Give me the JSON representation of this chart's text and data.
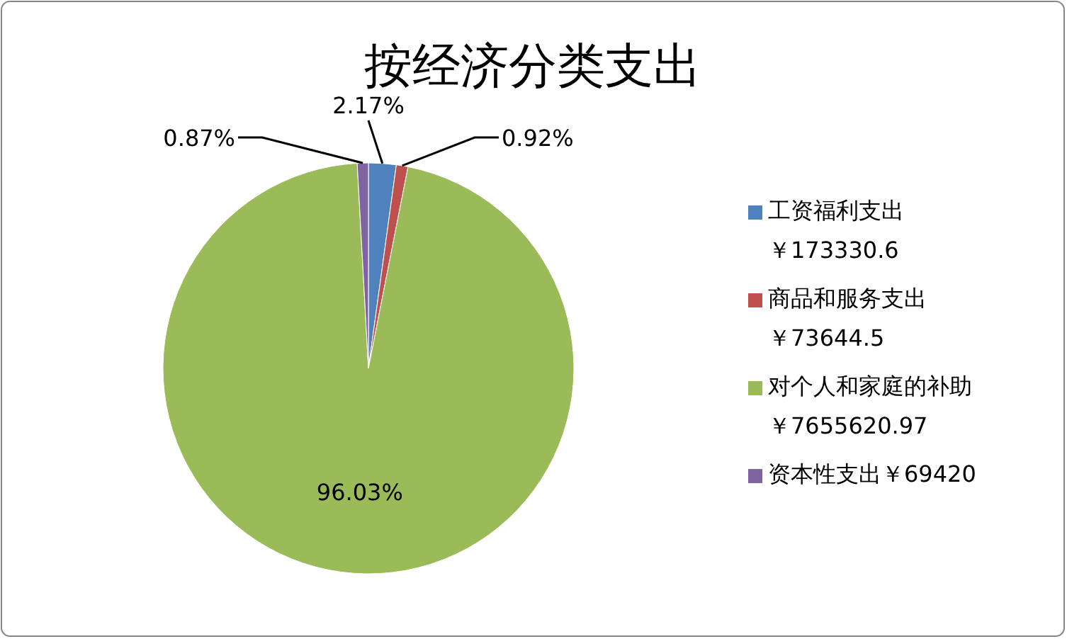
{
  "chart_data": {
    "type": "pie",
    "title": "按经济分类支出",
    "categories": [
      "工资福利支出￥173330.6",
      "商品和服务支出￥73644.5",
      "对个人和家庭的补助￥7655620.97",
      "资本性支出￥69420"
    ],
    "values": [
      2.17,
      0.92,
      96.03,
      0.87
    ],
    "value_labels": [
      "2.17%",
      "0.92%",
      "96.03%",
      "0.87%"
    ],
    "colors": [
      "#4f81bd",
      "#c0504d",
      "#9bbb59",
      "#8064a2"
    ],
    "legend": "right"
  }
}
